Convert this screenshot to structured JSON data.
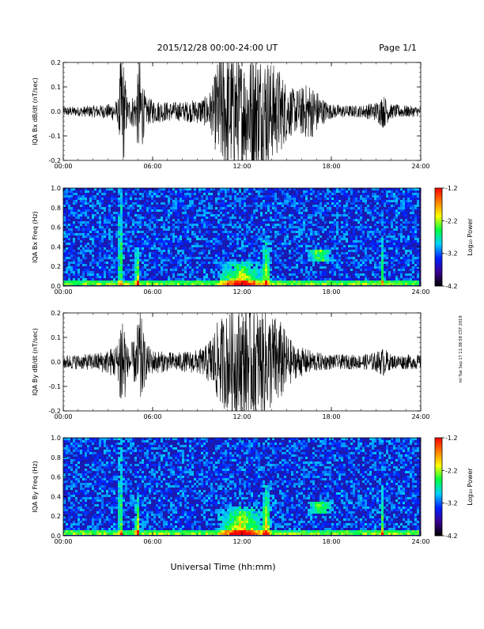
{
  "header": {
    "title": "2015/12/28   00:00-24:00 UT",
    "page": "Page 1/1"
  },
  "footer": {
    "xlabel": "Universal Time (hh:mm)",
    "side_stamp": "ml Tue Sep 17 11:38:58 CST 2019"
  },
  "colorbar": {
    "label": "Log₁₀ Power",
    "ticks": [
      "-1.2",
      "-2.2",
      "-3.2",
      "-4.2"
    ],
    "range": [
      -4.2,
      -1.2
    ],
    "colors": [
      "#000000",
      "#3a0090",
      "#0020ff",
      "#00d0ff",
      "#00ff40",
      "#ffff00",
      "#ff8000",
      "#ff0000"
    ]
  },
  "chart_data": [
    {
      "type": "line",
      "ylabel": "IQA Bx dB/dt (nT/sec)",
      "ylim": [
        -0.2,
        0.2
      ],
      "yticks": [
        "0.2",
        "0.1",
        "0.0",
        "-0.1",
        "-0.2"
      ],
      "xlim": [
        "00:00",
        "24:00"
      ],
      "xticks": [
        "00:00",
        "06:00",
        "12:00",
        "18:00",
        "24:00"
      ],
      "color": "#000000",
      "envelope": {
        "x_hours": [
          0,
          1,
          2,
          3,
          3.7,
          3.85,
          4.0,
          4.3,
          4.9,
          5.1,
          5.5,
          6,
          7,
          8,
          9,
          9.5,
          10,
          10.5,
          11,
          11.5,
          12,
          12.5,
          13,
          13.5,
          14,
          14.5,
          15,
          15.5,
          16,
          16.5,
          17,
          17.5,
          18,
          19,
          20,
          21,
          21.5,
          22,
          23,
          24
        ],
        "amplitude": [
          0.02,
          0.02,
          0.025,
          0.03,
          0.05,
          0.25,
          0.25,
          0.05,
          0.08,
          0.25,
          0.06,
          0.05,
          0.04,
          0.04,
          0.05,
          0.06,
          0.1,
          0.25,
          0.25,
          0.25,
          0.22,
          0.25,
          0.25,
          0.25,
          0.2,
          0.18,
          0.12,
          0.09,
          0.1,
          0.12,
          0.09,
          0.05,
          0.03,
          0.025,
          0.025,
          0.04,
          0.07,
          0.03,
          0.025,
          0.02
        ]
      }
    },
    {
      "type": "heatmap",
      "ylabel": "IQA Bx Freq (Hz)",
      "ylim": [
        0.0,
        1.0
      ],
      "yticks": [
        "1.0",
        "0.8",
        "0.6",
        "0.4",
        "0.2",
        "0.0"
      ],
      "xlim": [
        "00:00",
        "24:00"
      ],
      "xticks": [
        "00:00",
        "06:00",
        "12:00",
        "18:00",
        "24:00"
      ],
      "features": [
        {
          "x_hours": 3.85,
          "width_hours": 0.15,
          "fmax": 1.0,
          "level": 0.7
        },
        {
          "x_hours": 5.0,
          "width_hours": 0.3,
          "fmax": 0.4,
          "level": 0.6
        },
        {
          "x_hours": 12.0,
          "width_hours": 3.5,
          "fmax": 0.25,
          "level": 0.65
        },
        {
          "x_hours": 13.7,
          "width_hours": 0.6,
          "fmax": 0.5,
          "level": 0.5
        },
        {
          "x_hours": 17.3,
          "width_hours": 1.8,
          "fmin": 0.25,
          "fmax": 0.37,
          "level": 0.55
        },
        {
          "x_hours": 21.5,
          "width_hours": 0.2,
          "fmax": 0.5,
          "level": 0.4
        }
      ]
    },
    {
      "type": "line",
      "ylabel": "IQA By dB/dt (nT/sec)",
      "ylim": [
        -0.2,
        0.2
      ],
      "yticks": [
        "0.2",
        "0.1",
        "0.0",
        "-0.1",
        "-0.2"
      ],
      "xlim": [
        "00:00",
        "24:00"
      ],
      "xticks": [
        "00:00",
        "06:00",
        "12:00",
        "18:00",
        "24:00"
      ],
      "color": "#000000",
      "envelope": {
        "x_hours": [
          0,
          1,
          2,
          3,
          3.7,
          3.85,
          4.0,
          4.3,
          4.9,
          5.1,
          5.5,
          6,
          7,
          8,
          9,
          9.5,
          10,
          10.5,
          11,
          11.5,
          12,
          12.5,
          13,
          13.5,
          14,
          14.5,
          15,
          15.5,
          16,
          16.5,
          17,
          17.5,
          18,
          19,
          20,
          21,
          21.5,
          22,
          23,
          24
        ],
        "amplitude": [
          0.03,
          0.03,
          0.035,
          0.05,
          0.08,
          0.25,
          0.25,
          0.06,
          0.1,
          0.25,
          0.08,
          0.05,
          0.04,
          0.04,
          0.05,
          0.06,
          0.12,
          0.18,
          0.2,
          0.22,
          0.22,
          0.25,
          0.22,
          0.22,
          0.2,
          0.18,
          0.12,
          0.07,
          0.06,
          0.05,
          0.04,
          0.035,
          0.03,
          0.03,
          0.03,
          0.04,
          0.06,
          0.03,
          0.03,
          0.03
        ]
      }
    },
    {
      "type": "heatmap",
      "ylabel": "IQA By Freq (Hz)",
      "ylim": [
        0.0,
        1.0
      ],
      "yticks": [
        "1.0",
        "0.8",
        "0.6",
        "0.4",
        "0.2",
        "0.0"
      ],
      "xlim": [
        "00:00",
        "24:00"
      ],
      "xticks": [
        "00:00",
        "06:00",
        "12:00",
        "18:00",
        "24:00"
      ],
      "features": [
        {
          "x_hours": 3.85,
          "width_hours": 0.15,
          "fmax": 1.0,
          "level": 0.7
        },
        {
          "x_hours": 5.0,
          "width_hours": 0.3,
          "fmax": 0.4,
          "level": 0.6
        },
        {
          "x_hours": 12.0,
          "width_hours": 3.5,
          "fmax": 0.3,
          "level": 0.7
        },
        {
          "x_hours": 13.7,
          "width_hours": 0.6,
          "fmax": 0.5,
          "level": 0.55
        },
        {
          "x_hours": 17.3,
          "width_hours": 1.8,
          "fmin": 0.22,
          "fmax": 0.34,
          "level": 0.55
        },
        {
          "x_hours": 21.5,
          "width_hours": 0.2,
          "fmax": 0.5,
          "level": 0.4
        }
      ]
    }
  ]
}
